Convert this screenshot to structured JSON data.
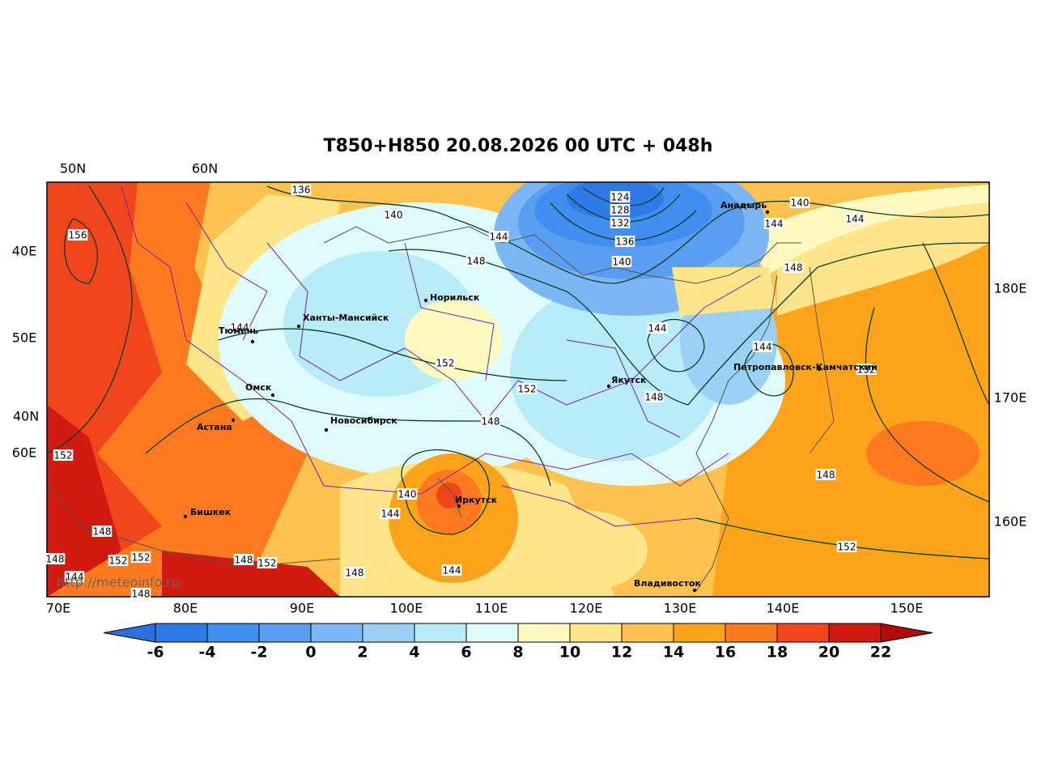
{
  "title": "T850+H850 20.08.2026 00 UTC + 048h",
  "top_labels": [
    "50N",
    "60N"
  ],
  "left_labels": [
    "40E",
    "50E",
    "40N",
    "60E"
  ],
  "right_labels": [
    "180E",
    "170E",
    "160E"
  ],
  "bottom_labels": [
    "70E",
    "80E",
    "90E",
    "100E",
    "110E",
    "120E",
    "130E",
    "140E",
    "150E"
  ],
  "colorbar": {
    "ticks": [
      -6,
      -4,
      -2,
      0,
      2,
      4,
      6,
      8,
      10,
      12,
      14,
      16,
      18,
      20,
      22
    ],
    "colors": [
      "#2f6fdc",
      "#2e7be8",
      "#3f8ef0",
      "#5a9ef2",
      "#7db6f5",
      "#9bd0f7",
      "#b8ecf8",
      "#e0fbfb",
      "#fffbc0",
      "#ffe58a",
      "#ffc24f",
      "#ffa41a",
      "#ff7a1f",
      "#f2451b",
      "#d11a10",
      "#b00c0c"
    ]
  },
  "contour_labels": [
    136,
    140,
    144,
    148,
    124,
    128,
    132,
    136,
    140,
    140,
    144,
    144,
    148,
    156,
    144,
    144,
    144,
    152,
    152,
    148,
    148,
    152,
    152,
    148,
    140,
    144,
    148,
    152,
    148,
    152,
    152,
    148,
    152,
    148,
    144,
    144,
    148
  ],
  "cities": [
    "Норильск",
    "Ханты-Мансийск",
    "Тюмень",
    "Омск",
    "Астана",
    "Новосибирск",
    "Бишкек",
    "Иркутск",
    "Якутск",
    "Анадырь",
    "Петропавловск-Камчатский",
    "Владивосток"
  ],
  "watermark": "http://meteoinfo.ru"
}
